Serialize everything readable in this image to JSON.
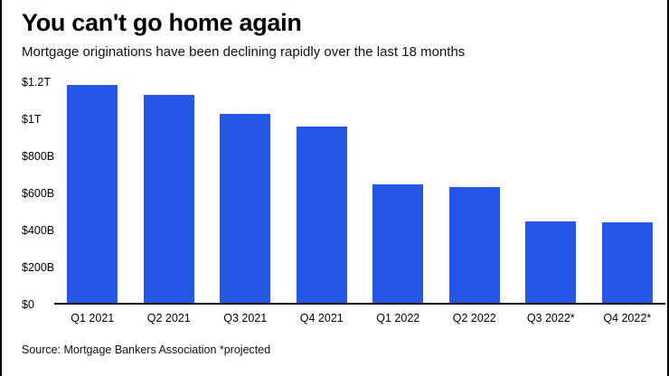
{
  "header": {
    "title": "You can't go home again",
    "subtitle": "Mortgage originations have been declining rapidly over the last 18 months"
  },
  "footer": {
    "source": "Source: Mortgage Bankers Association *projected"
  },
  "colors": {
    "bar": "#2457e5",
    "axis": "#000000"
  },
  "chart_data": {
    "type": "bar",
    "title": "You can't go home again",
    "subtitle": "Mortgage originations have been declining rapidly over the last 18 months",
    "categories": [
      "Q1 2021",
      "Q2 2021",
      "Q3 2021",
      "Q4 2021",
      "Q1 2022",
      "Q2 2022",
      "Q3 2022*",
      "Q4 2022*"
    ],
    "values": [
      1185,
      1130,
      1030,
      960,
      645,
      630,
      445,
      440
    ],
    "unit": "USD billions",
    "ylim": [
      0,
      1200
    ],
    "yticks": [
      {
        "value": 0,
        "label": "$0"
      },
      {
        "value": 200,
        "label": "$200B"
      },
      {
        "value": 400,
        "label": "$400B"
      },
      {
        "value": 600,
        "label": "$600B"
      },
      {
        "value": 800,
        "label": "$800B"
      },
      {
        "value": 1000,
        "label": "$1T"
      },
      {
        "value": 1200,
        "label": "$1.2T"
      }
    ],
    "grid": false,
    "legend": false,
    "source": "Source: Mortgage Bankers Association *projected"
  }
}
